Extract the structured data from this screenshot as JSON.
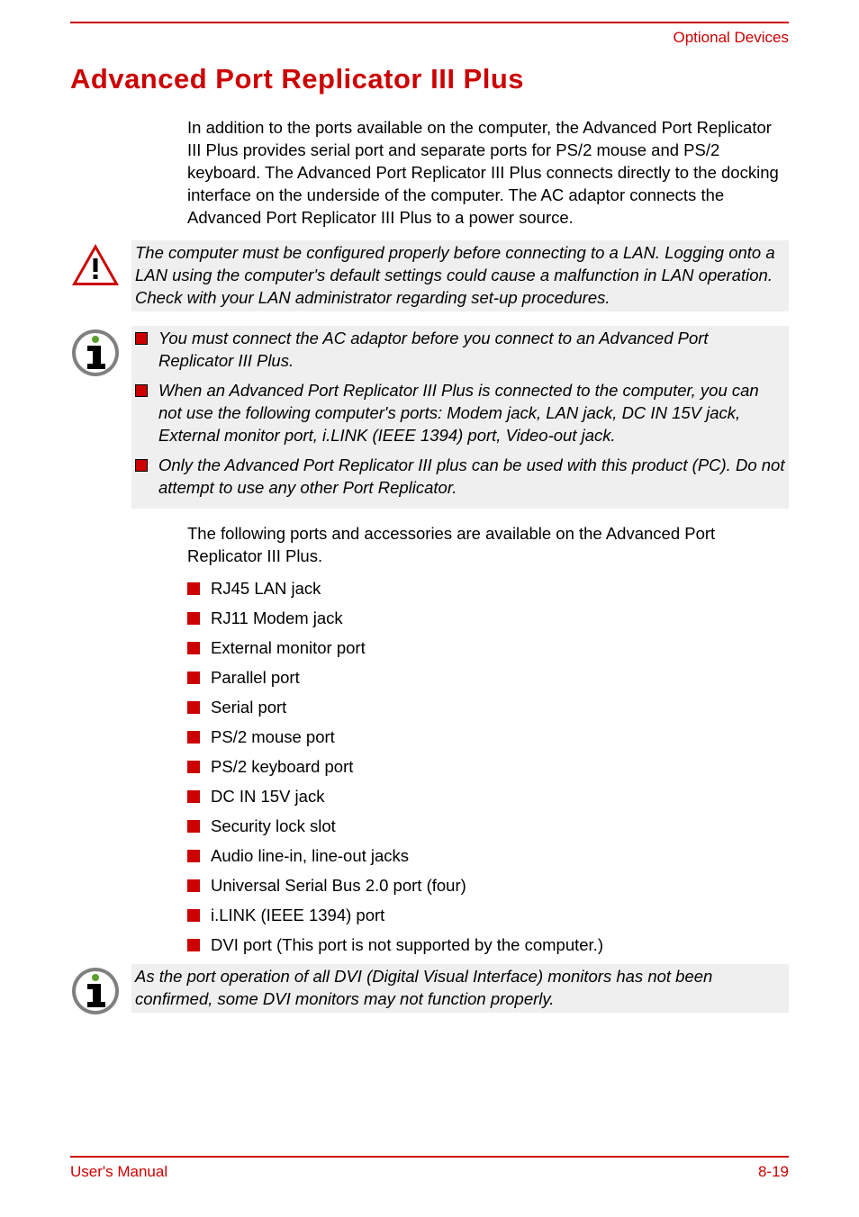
{
  "colors": {
    "accent": "#cc0000",
    "text": "#000000",
    "shade": "#efefef",
    "icon_gray": "#808080",
    "icon_green": "#5aa02c",
    "background": "#ffffff"
  },
  "header": {
    "right": "Optional Devices"
  },
  "title": "Advanced Port Replicator III Plus",
  "intro": "In addition to the ports available on the computer, the Advanced Port Replicator III Plus provides serial port and separate ports for PS/2 mouse and PS/2 keyboard. The Advanced Port Replicator III Plus connects directly to the docking interface on the underside of the computer. The AC adaptor connects the Advanced Port Replicator III Plus to a power source.",
  "warning": "The computer must be configured properly before connecting to a LAN. Logging onto a LAN using the computer's default settings could cause a malfunction in LAN operation. Check with your LAN administrator regarding set-up procedures.",
  "info_items": [
    "You must connect the AC adaptor before you connect to an Advanced Port Replicator III Plus.",
    "When an Advanced Port Replicator III Plus is connected to the computer, you can not use the following computer's ports: Modem jack, LAN jack, DC IN 15V jack, External monitor port, i.LINK (IEEE 1394) port, Video-out jack.",
    "Only the Advanced Port Replicator III plus can be used with this product (PC). Do not attempt to use any other Port Replicator."
  ],
  "ports_intro": "The following ports and accessories are available on the Advanced Port Replicator III Plus.",
  "ports": [
    "RJ45 LAN jack",
    "RJ11 Modem jack",
    "External monitor port",
    "Parallel port",
    "Serial port",
    "PS/2 mouse port",
    "PS/2 keyboard port",
    "DC IN 15V jack",
    "Security lock slot",
    "Audio line-in, line-out jacks",
    "Universal Serial Bus 2.0 port (four)",
    "i.LINK (IEEE 1394) port",
    "DVI port (This port is not supported by the computer.)"
  ],
  "dvi_note": "As the port operation of all DVI (Digital Visual Interface) monitors has not been confirmed, some DVI monitors may not function properly.",
  "footer": {
    "left": "User's Manual",
    "right": "8-19"
  }
}
